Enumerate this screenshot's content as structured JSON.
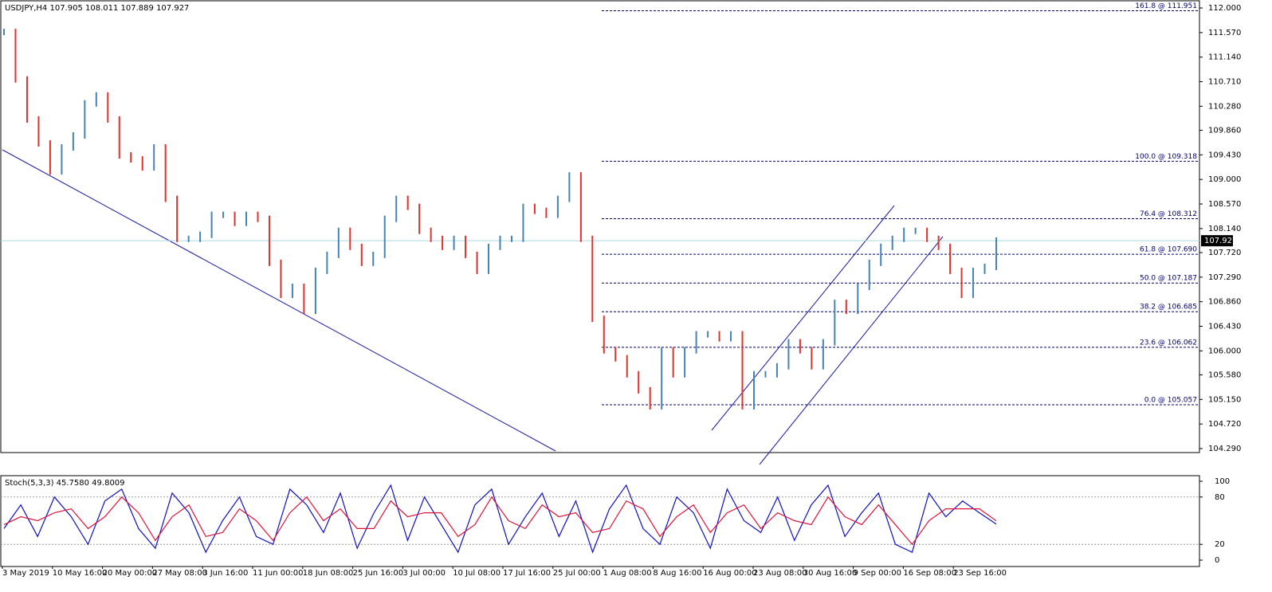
{
  "chart_data": [
    {
      "type": "price-bars",
      "title": "USDJPY,H4  107.905 108.011 107.889 107.927",
      "up_color": "#4682b4",
      "down_color": "#e0312b",
      "close": [
        111.58,
        110.75,
        110.05,
        109.63,
        109.14,
        109.56,
        109.77,
        110.33,
        110.47,
        110.05,
        109.42,
        109.35,
        109.21,
        109.56,
        108.66,
        107.96,
        107.96,
        108.03,
        108.38,
        108.38,
        108.24,
        108.38,
        108.31,
        107.54,
        106.98,
        107.12,
        106.7,
        107.4,
        107.68,
        108.1,
        107.82,
        107.54,
        107.68,
        108.31,
        108.66,
        108.52,
        108.1,
        107.96,
        107.82,
        107.96,
        107.68,
        107.4,
        107.82,
        107.96,
        107.96,
        108.52,
        108.45,
        108.38,
        108.66,
        109.07,
        107.96,
        106.56,
        106.01,
        105.87,
        105.59,
        105.31,
        105.03,
        106.01,
        105.59,
        106.01,
        106.29,
        106.29,
        106.22,
        106.29,
        105.03,
        105.59,
        105.59,
        105.73,
        106.15,
        106.01,
        105.73,
        106.15,
        106.84,
        106.7,
        107.12,
        107.54,
        107.82,
        107.96,
        108.1,
        108.1,
        107.96,
        107.82,
        107.4,
        106.98,
        107.4,
        107.47,
        107.93
      ],
      "ylim": [
        104.234,
        112.098
      ],
      "yticks": [
        {
          "value": 112.0,
          "label": "112.000"
        },
        {
          "value": 111.57,
          "label": "111.570"
        },
        {
          "value": 111.14,
          "label": "111.140"
        },
        {
          "value": 110.71,
          "label": "110.710"
        },
        {
          "value": 110.28,
          "label": "110.280"
        },
        {
          "value": 109.86,
          "label": "109.860"
        },
        {
          "value": 109.43,
          "label": "109.430"
        },
        {
          "value": 109.0,
          "label": "109.000"
        },
        {
          "value": 108.57,
          "label": "108.570"
        },
        {
          "value": 108.14,
          "label": "108.140"
        },
        {
          "value": 107.72,
          "label": "107.720"
        },
        {
          "value": 107.29,
          "label": "107.290"
        },
        {
          "value": 106.86,
          "label": "106.860"
        },
        {
          "value": 106.43,
          "label": "106.430"
        },
        {
          "value": 106.0,
          "label": "106.000"
        },
        {
          "value": 105.58,
          "label": "105.580"
        },
        {
          "value": 105.15,
          "label": "105.150"
        },
        {
          "value": 104.72,
          "label": "104.720"
        },
        {
          "value": 104.29,
          "label": "104.290"
        }
      ],
      "fib_levels": [
        {
          "value": 111.951,
          "label": "161.8 @ 111.951"
        },
        {
          "value": 109.318,
          "label": "100.0 @ 109.318"
        },
        {
          "value": 108.312,
          "label": "76.4 @ 108.312"
        },
        {
          "value": 107.69,
          "label": "61.8 @ 107.690"
        },
        {
          "value": 107.187,
          "label": "50.0 @ 107.187"
        },
        {
          "value": 106.685,
          "label": "38.2 @ 106.685"
        },
        {
          "value": 106.062,
          "label": "23.6 @ 106.062"
        },
        {
          "value": 105.057,
          "label": "0.0 @ 105.057"
        }
      ],
      "last_price": {
        "value": 107.927,
        "label": "107.927"
      },
      "x_labels": [
        "3 May 2019",
        "10 May 16:00",
        "20 May 00:00",
        "27 May 08:00",
        "3 Jun 16:00",
        "11 Jun 00:00",
        "18 Jun 08:00",
        "25 Jun 16:00",
        "3 Jul 00:00",
        "10 Jul 08:00",
        "17 Jul 16:00",
        "25 Jul 00:00",
        "1 Aug 08:00",
        "8 Aug 16:00",
        "16 Aug 00:00",
        "23 Aug 08:00",
        "30 Aug 16:00",
        "9 Sep 00:00",
        "16 Sep 08:00",
        "23 Sep 16:00"
      ]
    },
    {
      "type": "line",
      "title": "Stoch(5,3,3) 45.7580 49.8009",
      "ylim": [
        0,
        100
      ],
      "yticks": [
        100,
        80,
        20,
        0
      ],
      "levels": [
        80,
        20
      ],
      "series": [
        {
          "color": "#1010c0",
          "values": [
            40,
            70,
            30,
            80,
            55,
            20,
            75,
            90,
            40,
            15,
            85,
            60,
            10,
            50,
            80,
            30,
            20,
            90,
            70,
            35,
            85,
            15,
            60,
            95,
            25,
            80,
            45,
            10,
            70,
            90,
            20,
            55,
            85,
            30,
            75,
            10,
            65,
            95,
            40,
            20,
            80,
            60,
            15,
            90,
            50,
            35,
            80,
            25,
            70,
            95,
            30,
            60,
            85,
            20,
            10,
            85,
            55,
            75,
            60,
            45.758
          ]
        },
        {
          "color": "#dc143c",
          "values": [
            45,
            55,
            50,
            60,
            65,
            40,
            55,
            80,
            60,
            25,
            55,
            70,
            30,
            35,
            65,
            50,
            25,
            60,
            80,
            50,
            65,
            40,
            40,
            75,
            55,
            60,
            60,
            30,
            45,
            80,
            50,
            40,
            70,
            55,
            60,
            35,
            40,
            75,
            65,
            30,
            55,
            70,
            35,
            60,
            70,
            40,
            60,
            50,
            45,
            80,
            55,
            45,
            70,
            45,
            20,
            50,
            65,
            65,
            65,
            49.8009
          ]
        }
      ]
    }
  ]
}
